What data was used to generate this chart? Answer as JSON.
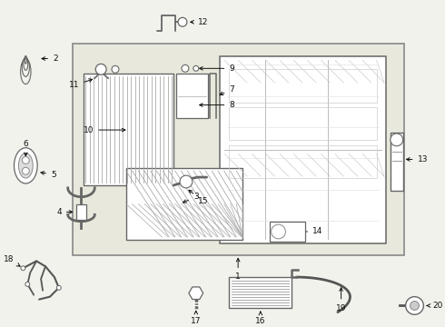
{
  "fig_width": 4.9,
  "fig_height": 3.6,
  "dpi": 100,
  "bg_color": "#f2f2ec",
  "box_bg": "#e8e8dc",
  "box_border": "#888888",
  "line_color": "#555555",
  "text_color": "#111111",
  "label_fontsize": 6.5
}
